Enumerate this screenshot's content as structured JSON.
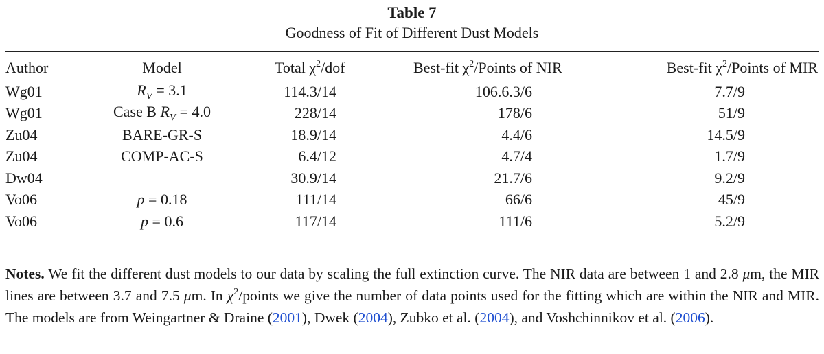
{
  "table_label": "Table 7",
  "table_title": "Goodness of Fit of Different Dust Models",
  "headers": {
    "author": "Author",
    "model": "Model",
    "total_pre": "Total χ",
    "total_post": "/dof",
    "nir_pre": "Best-fit χ",
    "nir_post": "/Points of NIR",
    "mir_pre": "Best-fit χ",
    "mir_post": "/Points of MIR",
    "sup": "2"
  },
  "rows": [
    {
      "author": "Wg01",
      "model": "R_V = 3.1",
      "total": "114.3/14",
      "nir": "106.6.3/6",
      "mir": "7.7/9"
    },
    {
      "author": "Wg01",
      "model": "Case B R_V = 4.0",
      "total": "228/14",
      "nir": "178/6",
      "mir": "51/9"
    },
    {
      "author": "Zu04",
      "model": "BARE-GR-S",
      "total": "18.9/14",
      "nir": "4.4/6",
      "mir": "14.5/9"
    },
    {
      "author": "Zu04",
      "model": "COMP-AC-S",
      "total": "6.4/12",
      "nir": "4.7/4",
      "mir": "1.7/9"
    },
    {
      "author": "Dw04",
      "model": "",
      "total": "30.9/14",
      "nir": "21.7/6",
      "mir": "9.2/9"
    },
    {
      "author": "Vo06",
      "model": "p = 0.18",
      "total": "111/14",
      "nir": "66/6",
      "mir": "45/9"
    },
    {
      "author": "Vo06",
      "model": "p = 0.6",
      "total": "117/14",
      "nir": "111/6",
      "mir": "5.2/9"
    }
  ],
  "notes": {
    "lead": "Notes.",
    "s1": " We fit the different dust models to our data by scaling the full extinction curve. The NIR data are between 1 and 2.8 ",
    "mu1": "μ",
    "s2": "m, the MIR lines are between 3.7 and 7.5 ",
    "mu2": "μ",
    "s3": "m. In ",
    "chi": "χ",
    "sup": "2",
    "s4": "/points we give the number of data points used for the fitting which are within the NIR and MIR. The models are from Weingartner & Draine (",
    "ref1": "2001",
    "s5": "), Dwek (",
    "ref2": "2004",
    "s6": "), Zubko et al. (",
    "ref3": "2004",
    "s7": "), and Voshchinnikov et al. (",
    "ref4": "2006",
    "s8": ")."
  }
}
